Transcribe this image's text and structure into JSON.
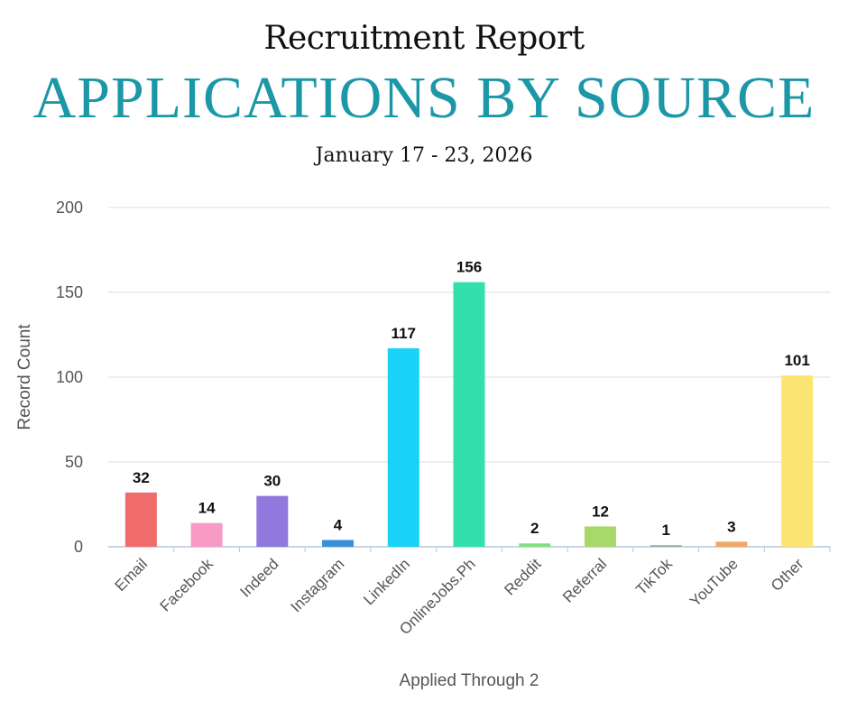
{
  "header": {
    "report_title": "Recruitment Report",
    "main_title": "APPLICATIONS BY SOURCE",
    "date_range": "January 17 - 23, 2026"
  },
  "chart_data": {
    "type": "bar",
    "categories": [
      "Email",
      "Facebook",
      "Indeed",
      "Instagram",
      "LinkedIn",
      "OnlineJobs.Ph",
      "Reddit",
      "Referral",
      "TikTok",
      "YouTube",
      "Other"
    ],
    "values": [
      32,
      14,
      30,
      4,
      117,
      156,
      2,
      12,
      1,
      3,
      101
    ],
    "colors": [
      "#f06b6b",
      "#f79ac6",
      "#8f78de",
      "#3a8fd9",
      "#18d3f7",
      "#33e0ad",
      "#7fe07f",
      "#a9d86a",
      "#9fb0b0",
      "#f0a86a",
      "#fbe471"
    ],
    "xlabel": "Applied Through 2",
    "ylabel": "Record Count",
    "ylim": [
      0,
      200
    ],
    "yticks": [
      0,
      50,
      100,
      150,
      200
    ],
    "grid": true,
    "data_labels": true
  }
}
